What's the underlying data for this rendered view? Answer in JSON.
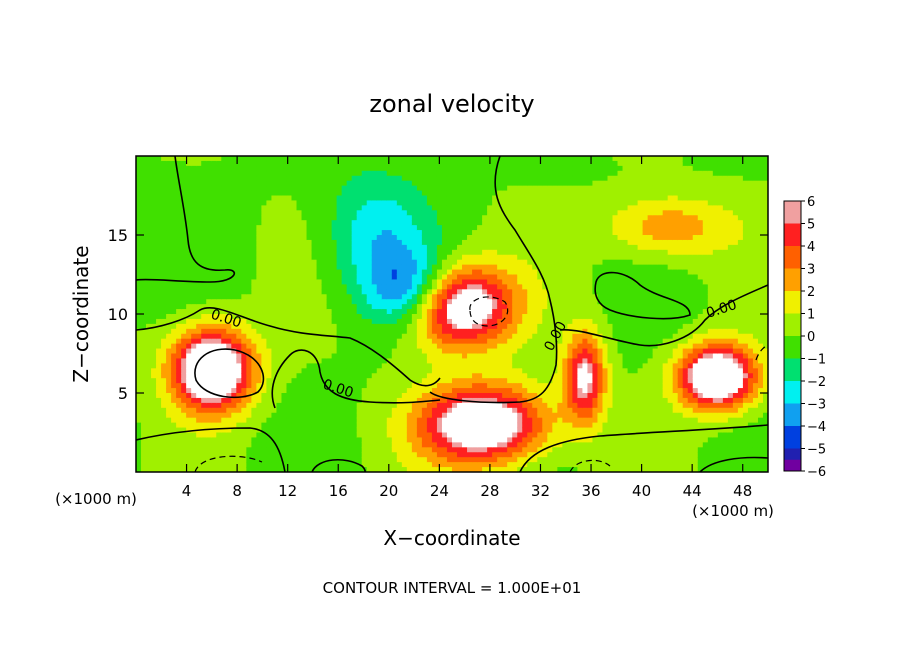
{
  "chart_data": {
    "type": "heatmap",
    "title": "zonal velocity",
    "xlabel": "X−coordinate",
    "ylabel": "Z−coordinate",
    "x_units_label": "(×1000 m)",
    "x_units_label_right": "(×1000 m)",
    "xlim": [
      0,
      50
    ],
    "ylim": [
      0,
      20
    ],
    "x_ticks": [
      4,
      8,
      12,
      16,
      20,
      24,
      28,
      32,
      36,
      40,
      44,
      48
    ],
    "y_ticks": [
      5,
      10,
      15
    ],
    "colorbar": {
      "min": -6,
      "max": 6,
      "ticks": [
        "6",
        "5",
        "4",
        "3",
        "2",
        "1",
        "0",
        "−1",
        "−2",
        "−3",
        "−4",
        "−5",
        "−6"
      ],
      "colors": [
        "#f0a0a0",
        "#ff2020",
        "#ff6000",
        "#ffa000",
        "#f0f000",
        "#a0f000",
        "#40e000",
        "#00e070",
        "#00f0f0",
        "#10a0f0",
        "#0040e0",
        "#2020b0",
        "#7000a0"
      ],
      "above_range_color": "#ffffff"
    },
    "contour_labels": [
      "0.00",
      "0.00",
      "0.00",
      "0.00"
    ],
    "footer": "CONTOUR INTERVAL = 1.000E+01",
    "features": [
      {
        "kind": "jet",
        "sign": "positive",
        "x": 25,
        "z": 10.5,
        "rx": 4.5,
        "rz": 2.6,
        "peak": 9
      },
      {
        "kind": "jet",
        "sign": "negative",
        "x": 22,
        "z": 11.2,
        "rx": 3.5,
        "rz": 2.5,
        "peak": -6
      },
      {
        "kind": "jet",
        "sign": "positive",
        "x": 6,
        "z": 6.5,
        "rx": 3.2,
        "rz": 2.6,
        "peak": 9
      },
      {
        "kind": "jet",
        "sign": "positive",
        "x": 27.5,
        "z": 3,
        "rx": 5,
        "rz": 2.5,
        "peak": 8
      },
      {
        "kind": "jet",
        "sign": "positive",
        "x": 42,
        "z": 15.5,
        "rx": 5,
        "rz": 2,
        "peak": 3
      },
      {
        "kind": "jet",
        "sign": "positive",
        "x": 35.5,
        "z": 6,
        "rx": 1.6,
        "rz": 2.8,
        "peak": 6
      },
      {
        "kind": "jet",
        "sign": "negative",
        "x": 19,
        "z": 15,
        "rx": 4,
        "rz": 4,
        "peak": -2.5
      },
      {
        "kind": "jet",
        "sign": "positive",
        "x": 46,
        "z": 6,
        "rx": 3,
        "rz": 2,
        "peak": 9
      }
    ]
  }
}
